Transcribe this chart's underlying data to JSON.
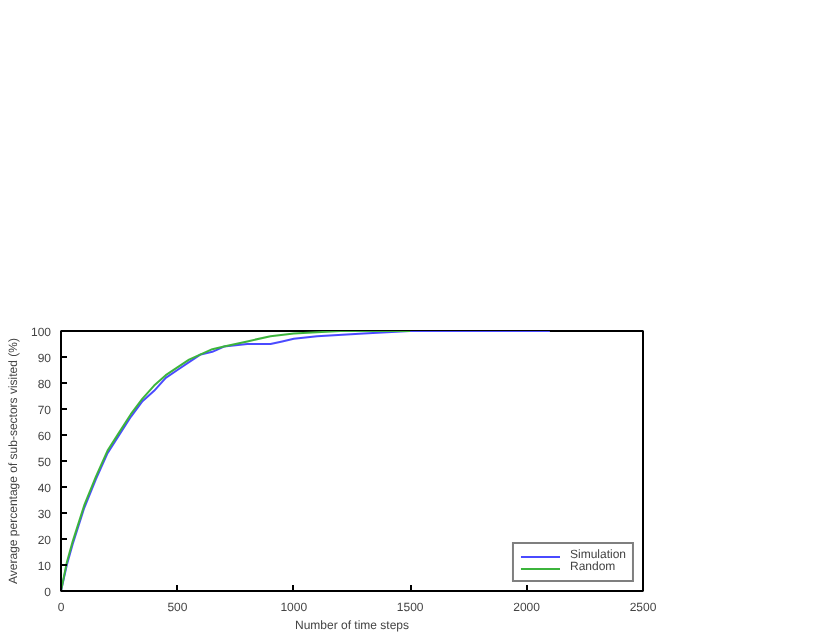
{
  "chart_data": {
    "type": "line",
    "xlabel": "Number of time steps",
    "ylabel": "Average percentage of sub-sectors visited (%)",
    "xlim": [
      0,
      2500
    ],
    "ylim": [
      0,
      100
    ],
    "xticks": [
      0,
      500,
      1000,
      1500,
      2000,
      2500
    ],
    "yticks": [
      0,
      10,
      20,
      30,
      40,
      50,
      60,
      70,
      80,
      90,
      100
    ],
    "grid": false,
    "legend": "bottom right",
    "series": [
      {
        "name": "Simulation",
        "color": "#4a4aff",
        "x": [
          0,
          25,
          50,
          100,
          150,
          200,
          250,
          300,
          350,
          400,
          450,
          500,
          550,
          600,
          650,
          700,
          800,
          900,
          950,
          1000,
          1100,
          1300,
          1400,
          1500,
          2100
        ],
        "values": [
          0,
          10,
          18,
          32,
          43,
          53,
          60,
          67,
          73,
          77,
          82,
          85,
          88,
          91,
          92,
          94,
          95,
          95,
          96,
          97,
          98,
          99,
          99.5,
          100,
          100
        ]
      },
      {
        "name": "Random",
        "color": "#3cb43c",
        "x": [
          0,
          25,
          50,
          100,
          150,
          200,
          250,
          300,
          350,
          400,
          450,
          500,
          550,
          600,
          650,
          700,
          800,
          900,
          1000,
          1100,
          1200,
          1500
        ],
        "values": [
          0,
          11,
          19,
          33,
          44,
          54,
          61,
          68,
          74,
          79,
          83,
          86,
          89,
          91,
          93,
          94,
          96,
          98,
          99,
          99.5,
          100,
          100
        ]
      }
    ]
  }
}
